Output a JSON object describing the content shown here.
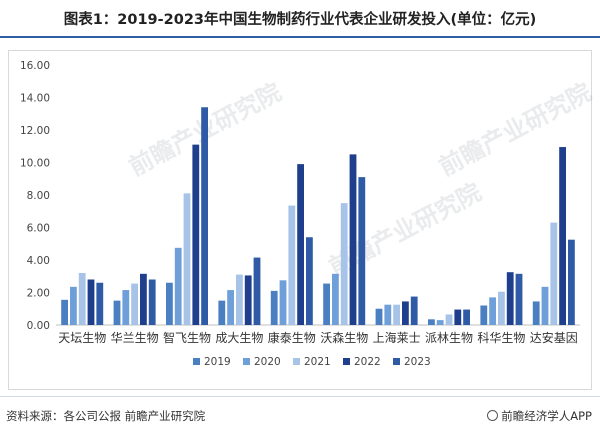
{
  "title": "图表1：2019-2023年中国生物制药行业代表企业研发投入(单位：亿元)",
  "watermark": "前瞻产业研究院",
  "footer": {
    "source": "资料来源：各公司公报 前瞻产业研究院",
    "brand": "前瞻经济学人APP"
  },
  "chart_data": {
    "type": "bar",
    "title": "",
    "xlabel": "",
    "ylabel": "",
    "ylim": [
      0,
      16
    ],
    "yticks": [
      "0.00",
      "2.00",
      "4.00",
      "6.00",
      "8.00",
      "10.00",
      "12.00",
      "14.00",
      "16.00"
    ],
    "grid": false,
    "legend_position": "bottom",
    "categories": [
      "天坛生物",
      "华兰生物",
      "智飞生物",
      "成大生物",
      "康泰生物",
      "沃森生物",
      "上海莱士",
      "派林生物",
      "科华生物",
      "达安基因"
    ],
    "series": [
      {
        "name": "2019",
        "color": "#4a7fc1",
        "values": [
          1.55,
          1.5,
          2.6,
          1.5,
          2.1,
          2.55,
          1.0,
          0.35,
          1.2,
          1.45
        ]
      },
      {
        "name": "2020",
        "color": "#6f9fd8",
        "values": [
          2.35,
          2.15,
          4.75,
          2.15,
          2.75,
          3.15,
          1.25,
          0.3,
          1.7,
          2.35
        ]
      },
      {
        "name": "2021",
        "color": "#a7c4e8",
        "values": [
          3.2,
          2.55,
          8.1,
          3.1,
          7.35,
          7.5,
          1.25,
          0.65,
          2.05,
          6.3
        ]
      },
      {
        "name": "2022",
        "color": "#1f3f8c",
        "values": [
          2.8,
          3.15,
          11.1,
          3.05,
          9.9,
          10.5,
          1.45,
          0.95,
          3.25,
          10.95
        ]
      },
      {
        "name": "2023",
        "color": "#2e5aa6",
        "values": [
          2.6,
          2.8,
          13.4,
          4.15,
          5.4,
          9.1,
          1.75,
          0.95,
          3.15,
          5.25
        ]
      }
    ]
  }
}
